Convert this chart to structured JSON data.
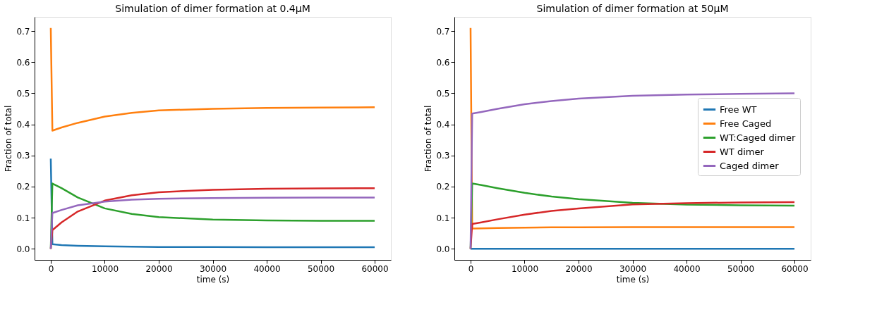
{
  "chart_data": [
    {
      "type": "line",
      "title": "Simulation of dimer formation at 0.4μM",
      "xlabel": "time (s)",
      "ylabel": "Fraction of total",
      "x": [
        0,
        300,
        2000,
        5000,
        10000,
        15000,
        20000,
        30000,
        40000,
        50000,
        60000
      ],
      "xlim": [
        -3000,
        63000
      ],
      "xticks": [
        0,
        10000,
        20000,
        30000,
        40000,
        50000,
        60000
      ],
      "ylim": [
        -0.0355,
        0.7455
      ],
      "yticks": [
        {
          "value": 0,
          "label": "0.0"
        },
        0.1,
        0.2,
        0.3,
        0.4,
        0.5,
        0.6,
        0.7
      ],
      "grid": false,
      "legend": false,
      "series": [
        {
          "color": "#1f77b4",
          "values": [
            0.29,
            0.015,
            0.012,
            0.01,
            0.008,
            0.007,
            0.006,
            0.006,
            0.005,
            0.005,
            0.005
          ]
        },
        {
          "color": "#ff7f0e",
          "values": [
            0.71,
            0.38,
            0.39,
            0.405,
            0.425,
            0.437,
            0.445,
            0.45,
            0.453,
            0.454,
            0.455
          ]
        },
        {
          "color": "#2ca02c",
          "values": [
            0,
            0.21,
            0.195,
            0.165,
            0.13,
            0.112,
            0.102,
            0.094,
            0.091,
            0.09,
            0.09
          ]
        },
        {
          "color": "#d62728",
          "values": [
            0,
            0.06,
            0.085,
            0.12,
            0.155,
            0.172,
            0.182,
            0.19,
            0.193,
            0.194,
            0.195
          ]
        },
        {
          "color": "#9467bd",
          "values": [
            0,
            0.115,
            0.125,
            0.14,
            0.152,
            0.158,
            0.161,
            0.163,
            0.164,
            0.165,
            0.165
          ]
        }
      ]
    },
    {
      "type": "line",
      "title": "Simulation of dimer formation at 50μM",
      "xlabel": "time (s)",
      "ylabel": "Fraction of total",
      "x": [
        0,
        300,
        2000,
        5000,
        10000,
        15000,
        20000,
        30000,
        40000,
        50000,
        60000
      ],
      "xlim": [
        -3000,
        63000
      ],
      "xticks": [
        0,
        10000,
        20000,
        30000,
        40000,
        50000,
        60000
      ],
      "ylim": [
        -0.0355,
        0.7455
      ],
      "yticks": [
        {
          "value": 0,
          "label": "0.0"
        },
        0.1,
        0.2,
        0.3,
        0.4,
        0.5,
        0.6,
        0.7
      ],
      "grid": false,
      "legend": "right",
      "series": [
        {
          "name": "Free WT",
          "color": "#1f77b4",
          "values": [
            0,
            0,
            0,
            0,
            0,
            0,
            0,
            0,
            0,
            0,
            0
          ]
        },
        {
          "name": "Free Caged",
          "color": "#ff7f0e",
          "values": [
            0.71,
            0.065,
            0.066,
            0.067,
            0.068,
            0.069,
            0.069,
            0.07,
            0.07,
            0.07,
            0.07
          ]
        },
        {
          "name": "WT:Caged dimer",
          "color": "#2ca02c",
          "values": [
            0,
            0.21,
            0.205,
            0.195,
            0.18,
            0.168,
            0.16,
            0.148,
            0.142,
            0.14,
            0.139
          ]
        },
        {
          "name": "WT dimer",
          "color": "#d62728",
          "values": [
            0,
            0.08,
            0.085,
            0.095,
            0.11,
            0.122,
            0.13,
            0.143,
            0.147,
            0.149,
            0.15
          ]
        },
        {
          "name": "Caged dimer",
          "color": "#9467bd",
          "values": [
            0,
            0.435,
            0.44,
            0.45,
            0.465,
            0.475,
            0.483,
            0.492,
            0.496,
            0.498,
            0.5
          ]
        }
      ]
    }
  ]
}
